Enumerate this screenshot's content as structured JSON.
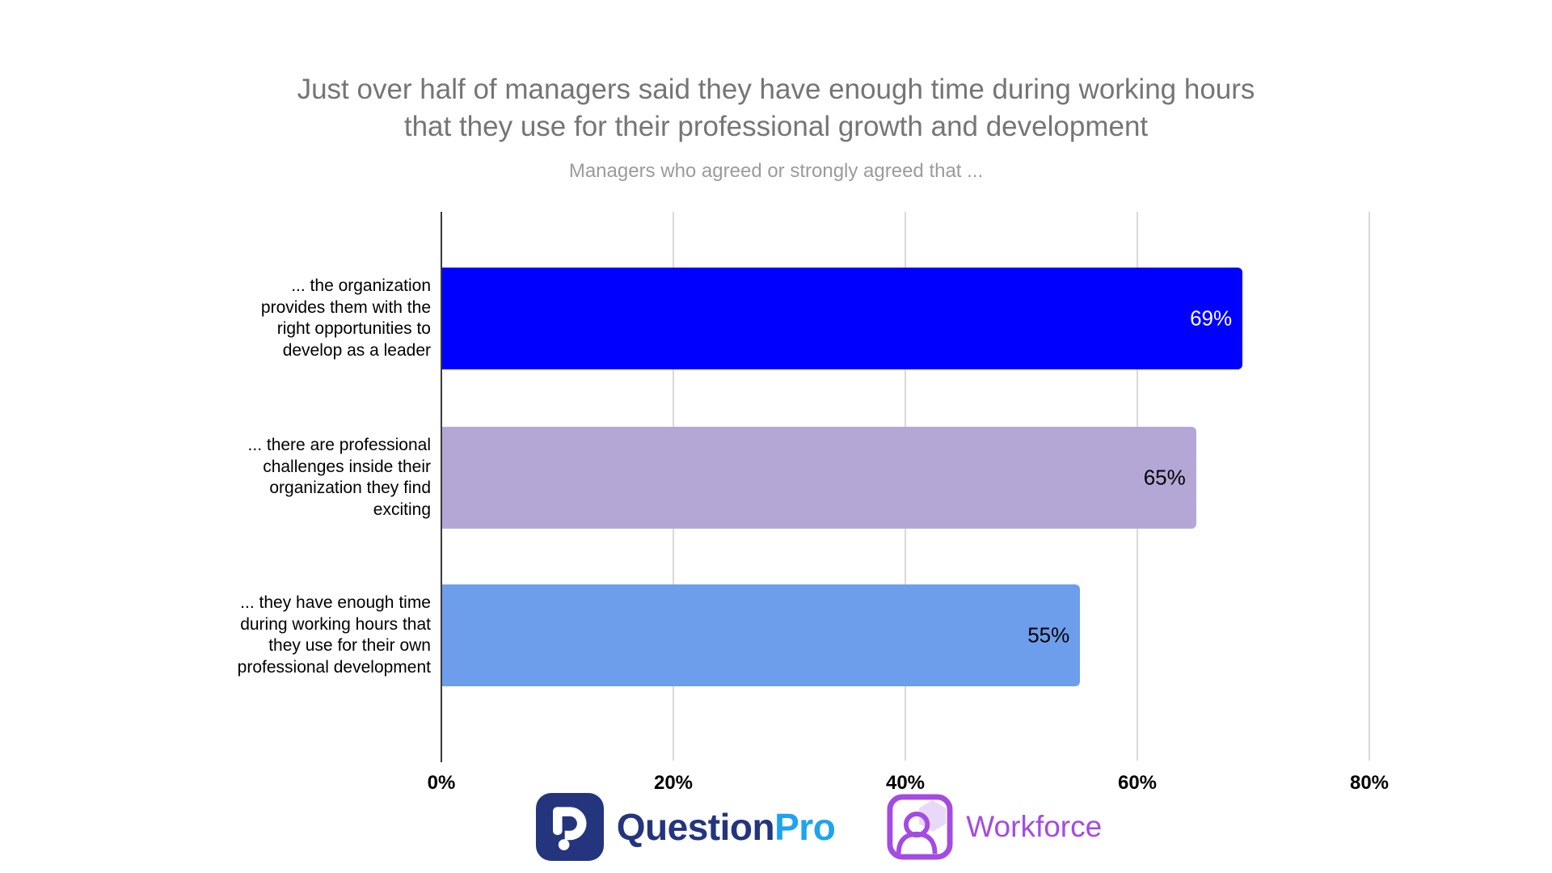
{
  "chart_data": {
    "type": "bar",
    "orientation": "horizontal",
    "title": "Just over half of managers said they have enough time during working hours that they use for their professional growth and development",
    "title_lines": [
      "Just over half of managers said they have enough time during working hours",
      "that they use for their professional growth and development"
    ],
    "subtitle": "Managers who agreed or strongly agreed that ...",
    "categories": [
      "... the organization provides them with the right opportunities to develop as a leader",
      "... there are professional challenges inside their organization they find exciting",
      "... they have enough time during working hours that they use for their own professional development"
    ],
    "category_lines": [
      [
        "... the organization",
        "provides them with the",
        "right opportunities to",
        "develop as a leader"
      ],
      [
        "... there are professional",
        "challenges inside their",
        "organization they find",
        "exciting"
      ],
      [
        "... they have enough time",
        "during working hours that",
        "they use for their own",
        "professional development"
      ]
    ],
    "values": [
      69,
      65,
      55
    ],
    "value_labels": [
      "69%",
      "65%",
      "55%"
    ],
    "bar_colors": [
      "#0000ff",
      "#b4a7d6",
      "#6d9eeb"
    ],
    "value_label_colors": [
      "#ffffff",
      "#000000",
      "#000000"
    ],
    "x_ticks": [
      {
        "value": 0,
        "label": "0%"
      },
      {
        "value": 20,
        "label": "20%"
      },
      {
        "value": 40,
        "label": "40%"
      },
      {
        "value": 60,
        "label": "60%"
      },
      {
        "value": 80,
        "label": "80%"
      }
    ],
    "xlim": [
      0,
      80
    ],
    "xlabel": "",
    "ylabel": "",
    "grid": true,
    "legend": "none",
    "title_color": "#757575",
    "subtitle_color": "#9b9b9b"
  },
  "footer": {
    "questionpro": {
      "icon": "questionpro-logo-mark",
      "text_question": "Question",
      "text_pro": "Pro",
      "color_question": "#24357e",
      "color_pro": "#1da3f0",
      "icon_bg": "#24357e"
    },
    "workforce": {
      "icon": "workforce-person-badge",
      "label": "Workforce",
      "color": "#a44be2",
      "hexagon_color": "#e8d9f8"
    }
  }
}
